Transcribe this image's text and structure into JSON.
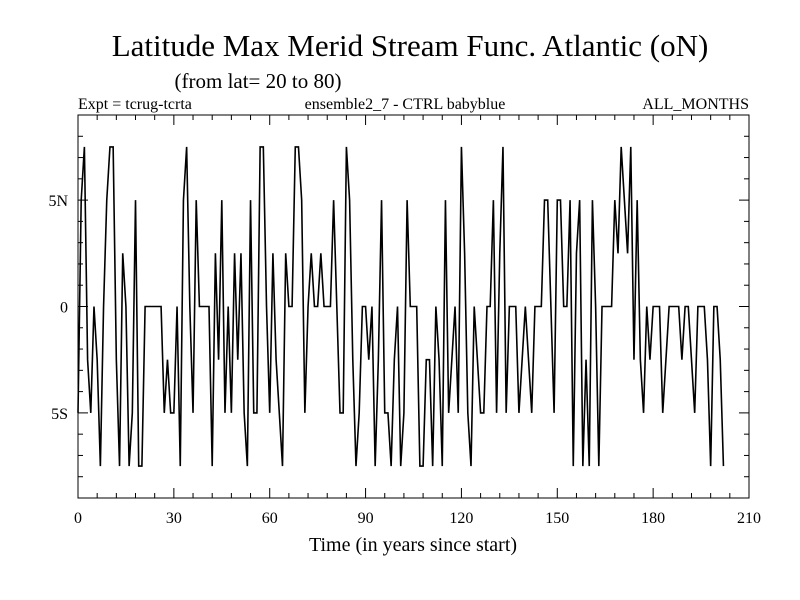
{
  "chart_data": {
    "type": "line",
    "title": "Latitude Max Merid Stream Func. Atlantic (oN)",
    "subtitle": "(from lat= 20 to 80)",
    "header_left": "Expt = tcrug-tcrta",
    "header_center": "ensemble2_7 - CTRL babyblue",
    "header_right": "ALL_MONTHS",
    "xlabel": "Time (in years since start)",
    "ylabel": "",
    "xlim": [
      0,
      210
    ],
    "ylim": [
      -9,
      9
    ],
    "x_ticks": [
      0,
      30,
      60,
      90,
      120,
      150,
      180,
      210
    ],
    "x_tick_labels": [
      "0",
      "30",
      "60",
      "90",
      "120",
      "150",
      "180",
      "210"
    ],
    "y_ticks": [
      -5,
      0,
      5
    ],
    "y_tick_labels": [
      "5S",
      "0",
      "5N"
    ],
    "grid": false,
    "series": [
      {
        "name": "ensemble2_7 - CTRL babyblue",
        "x_start": 0,
        "x_step": 1,
        "values": [
          -5,
          5,
          7.5,
          -2.5,
          -5,
          0,
          -2.5,
          -7.5,
          0,
          5,
          7.5,
          7.5,
          -2.5,
          -7.5,
          2.5,
          0,
          -7.5,
          -5,
          5,
          -7.5,
          -7.5,
          0,
          0,
          0,
          0,
          0,
          0,
          -5,
          -2.5,
          -5,
          -5,
          0,
          -7.5,
          5,
          7.5,
          0,
          -5,
          5,
          0,
          0,
          0,
          0,
          -7.5,
          2.5,
          -2.5,
          5,
          -5,
          0,
          -5,
          2.5,
          -2.5,
          2.5,
          -5,
          -7.5,
          5,
          -5,
          -5,
          7.5,
          7.5,
          0,
          -5,
          2.5,
          -2.5,
          -5,
          -7.5,
          2.5,
          0,
          0,
          7.5,
          7.5,
          5,
          -5,
          0,
          2.5,
          0,
          0,
          2.5,
          0,
          0,
          0,
          5,
          0,
          -5,
          -5,
          7.5,
          5,
          -2.5,
          -7.5,
          -5,
          0,
          0,
          -2.5,
          0,
          -7.5,
          -2.5,
          5,
          -5,
          -5,
          -7.5,
          -2.5,
          0,
          -7.5,
          -5,
          5,
          0,
          0,
          0,
          -7.5,
          -7.5,
          -2.5,
          -2.5,
          -7.5,
          0,
          -2.5,
          -7.5,
          5,
          -5,
          -2.5,
          0,
          -5,
          7.5,
          2.5,
          -5,
          -7.5,
          0,
          -2.5,
          -5,
          -5,
          0,
          0,
          5,
          -5,
          2.5,
          7.5,
          -5,
          0,
          0,
          0,
          -5,
          -2.5,
          0,
          -2.5,
          -5,
          0,
          0,
          0,
          5,
          5,
          0,
          -5,
          5,
          5,
          0,
          0,
          5,
          -7.5,
          2.5,
          5,
          -7.5,
          -2.5,
          -7.5,
          5,
          0,
          -7.5,
          0,
          0,
          0,
          0,
          5,
          2.5,
          7.5,
          5,
          2.5,
          7.5,
          -2.5,
          5,
          -2.5,
          -5,
          0,
          -2.5,
          0,
          0,
          0,
          -5,
          -2.5,
          0,
          0,
          0,
          0,
          -2.5,
          0,
          0,
          -2.5,
          -5,
          0,
          0,
          0,
          -2.5,
          -7.5,
          0,
          0,
          -2.5,
          -7.5
        ]
      }
    ]
  }
}
